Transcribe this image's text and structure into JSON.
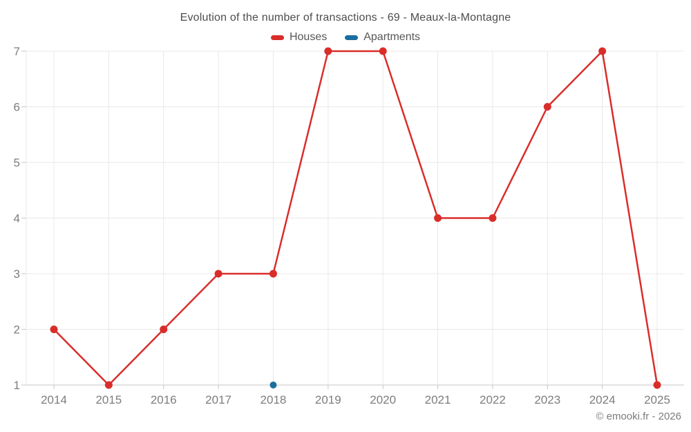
{
  "title": "Evolution of the number of transactions - 69 - Meaux-la-Montagne",
  "copyright": "© emooki.fr - 2026",
  "chart_data": {
    "type": "line",
    "categories": [
      "2014",
      "2015",
      "2016",
      "2017",
      "2018",
      "2019",
      "2020",
      "2021",
      "2022",
      "2023",
      "2024",
      "2025"
    ],
    "series": [
      {
        "name": "Houses",
        "color": "#d92d2a",
        "values": [
          2,
          1,
          2,
          3,
          3,
          7,
          7,
          4,
          4,
          6,
          7,
          1
        ]
      },
      {
        "name": "Apartments",
        "color": "#1a6e9e",
        "values": [
          null,
          null,
          null,
          null,
          1,
          null,
          null,
          null,
          null,
          null,
          null,
          null
        ]
      }
    ],
    "title": "Evolution of the number of transactions - 69 - Meaux-la-Montagne",
    "xlabel": "",
    "ylabel": "",
    "ylim": [
      1,
      7
    ],
    "y_ticks": [
      1,
      2,
      3,
      4,
      5,
      6,
      7
    ],
    "grid": true,
    "legend_position": "top"
  },
  "colors": {
    "houses": "#d92d2a",
    "apartments": "#1a6e9e",
    "gridline": "#e8e8e8",
    "axis": "#c6c6c6",
    "axis_label": "#7d7d7d",
    "title_text": "#4d4d4d"
  }
}
